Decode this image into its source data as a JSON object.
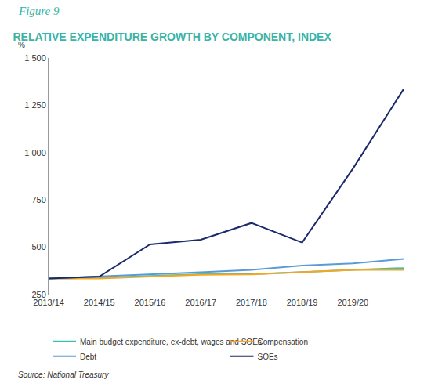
{
  "chart_data": {
    "type": "line",
    "subtitle": "Figure 9",
    "title": "RELATIVE EXPENDITURE GROWTH BY COMPONENT, INDEX",
    "y_label": "%",
    "source": "Source: National Treasury",
    "categories": [
      "2013/14",
      "2014/15",
      "2015/16",
      "2016/17",
      "2017/18",
      "2018/19",
      "2019/20",
      null
    ],
    "series": [
      {
        "name": "Main budget expenditure, ex-debt, wages and SOEs",
        "color": "#3dbfb1",
        "values": [
          335,
          338,
          348,
          358,
          358,
          370,
          380,
          390
        ]
      },
      {
        "name": "Compensation",
        "color": "#f5a623",
        "values": [
          335,
          335,
          345,
          355,
          357,
          368,
          380,
          380
        ]
      },
      {
        "name": "Debt",
        "color": "#5b9bd5",
        "values": [
          335,
          345,
          355,
          368,
          380,
          403,
          415,
          438
        ]
      },
      {
        "name": "SOEs",
        "color": "#1b2a6b",
        "values": [
          335,
          345,
          515,
          540,
          628,
          525,
          915,
          1335
        ]
      }
    ],
    "ylim": [
      250,
      1500
    ],
    "yticks": [
      250,
      500,
      750,
      {
        "value": 1000,
        "label": "1 000"
      },
      {
        "value": 1250,
        "label": "1 250"
      },
      {
        "value": 1500,
        "label": "1 500"
      }
    ],
    "grid": false,
    "legend": "bottom"
  }
}
